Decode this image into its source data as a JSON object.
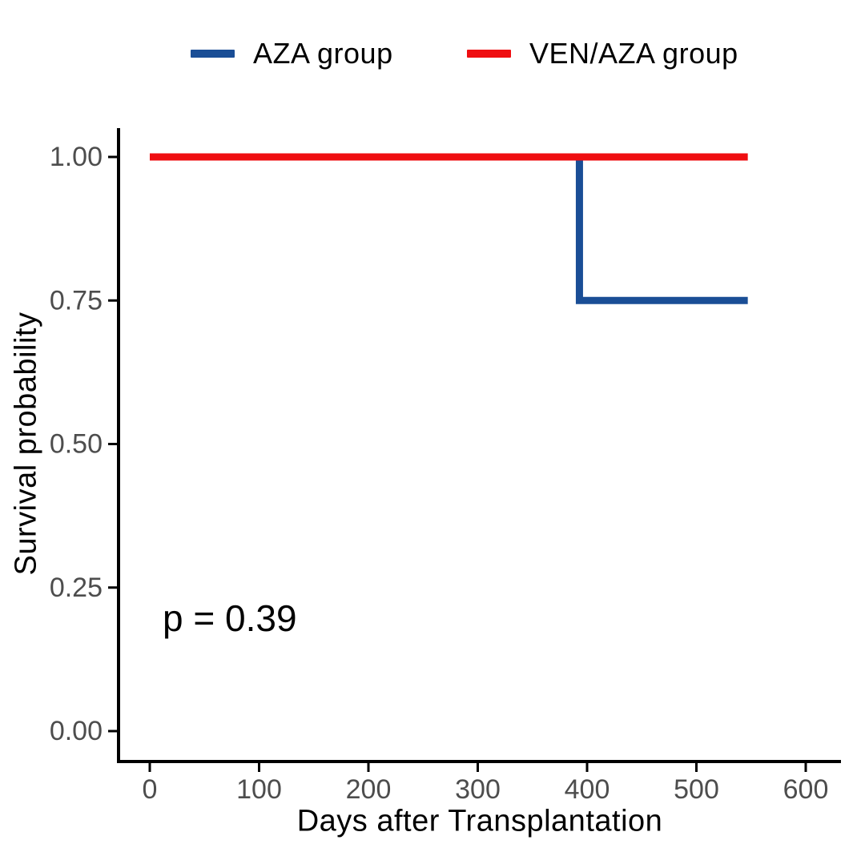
{
  "style": {
    "background": "#ffffff",
    "axis_color": "#000000",
    "tick_label_color": "#4d4d4d",
    "text_color": "#000000"
  },
  "legend": {
    "position": "top",
    "items": [
      {
        "label": "AZA group",
        "color": "#1a4e96"
      },
      {
        "label": "VEN/AZA group",
        "color": "#ef0e11"
      }
    ]
  },
  "chart_data": {
    "type": "line",
    "subtype": "kaplan-meier-step",
    "title": "",
    "xlabel": "Days after Transplantation",
    "ylabel": "Survival probability",
    "xlim": [
      0,
      600
    ],
    "ylim": [
      0,
      1
    ],
    "grid": false,
    "legend_position": "top",
    "xticks": [
      {
        "value": 0,
        "label": "0"
      },
      {
        "value": 100,
        "label": "100"
      },
      {
        "value": 200,
        "label": "200"
      },
      {
        "value": 300,
        "label": "300"
      },
      {
        "value": 400,
        "label": "400"
      },
      {
        "value": 500,
        "label": "500"
      },
      {
        "value": 600,
        "label": "600"
      }
    ],
    "yticks": [
      {
        "value": 0.0,
        "label": "0.00"
      },
      {
        "value": 0.25,
        "label": "0.25"
      },
      {
        "value": 0.5,
        "label": "0.50"
      },
      {
        "value": 0.75,
        "label": "0.75"
      },
      {
        "value": 1.0,
        "label": "1.00"
      }
    ],
    "series": [
      {
        "name": "AZA group",
        "color": "#1a4e96",
        "points": [
          [
            0,
            1.0
          ],
          [
            393,
            1.0
          ],
          [
            393,
            0.75
          ],
          [
            547,
            0.75
          ]
        ]
      },
      {
        "name": "VEN/AZA group",
        "color": "#ef0e11",
        "points": [
          [
            0,
            1.0
          ],
          [
            547,
            1.0
          ]
        ]
      }
    ],
    "annotation": {
      "text": "p = 0.39"
    }
  }
}
